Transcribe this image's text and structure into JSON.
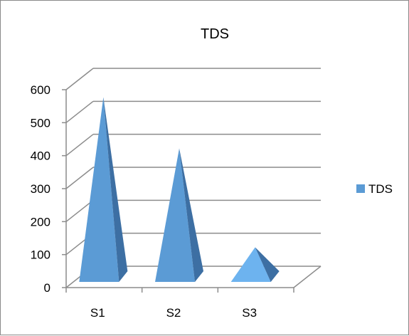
{
  "chart_data": {
    "type": "bar",
    "style": "3d-pyramid",
    "title": "TDS",
    "categories": [
      "S1",
      "S2",
      "S3"
    ],
    "series": [
      {
        "name": "TDS",
        "values": [
          560,
          405,
          105
        ]
      }
    ],
    "ylim": [
      0,
      600
    ],
    "yticks": [
      "0",
      "100",
      "200",
      "300",
      "400",
      "500",
      "600"
    ],
    "grid": true,
    "legend_position": "right",
    "colors": {
      "bar_front": "#5b9bd5",
      "bar_side": "#3d6fa3",
      "bar_front_light": "#6db3ef",
      "grid": "#8c8c8c"
    }
  }
}
